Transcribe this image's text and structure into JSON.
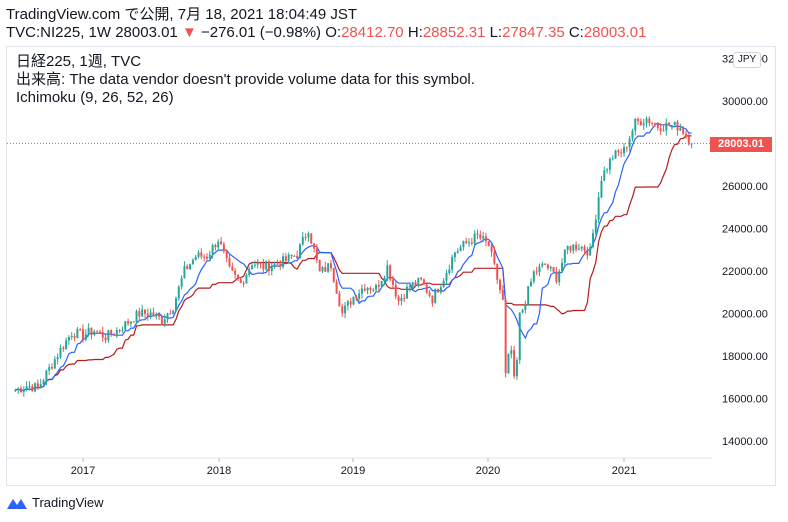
{
  "header": {
    "line1": "TradingView.com で公開, 7月 18, 2021 18:04:49 JST",
    "symbol": "TVC:NI225, 1W 28003.01",
    "change_arrow": "▼",
    "change": "−276.01 (−0.98%)",
    "o_label": "O:",
    "o_value": "28412.70",
    "h_label": "H:",
    "h_value": "28852.31",
    "l_label": "L:",
    "l_value": "27847.35",
    "c_label": "C:",
    "c_value": "28003.01"
  },
  "legend": {
    "line1": "日経225, 1週, TVC",
    "line2": "出来高: The data vendor doesn't provide volume data for this symbol.",
    "line3": "Ichimoku (9, 26, 52, 26)"
  },
  "currency": "JPY",
  "last_price_label": "28003.01",
  "brand": "TradingView",
  "colors": {
    "up": "#26a69a",
    "down": "#ef5350",
    "tenkan": "#2962ff",
    "kijun": "#b71c1c",
    "axis_text": "#131722"
  },
  "chart_data": {
    "type": "candlestick",
    "title": "日経225, 1週, TVC",
    "ylim": [
      13000,
      32000
    ],
    "y_ticks": [
      14000,
      16000,
      18000,
      20000,
      22000,
      24000,
      26000,
      28000,
      30000
    ],
    "y_tick_labels": [
      "14000.00",
      "16000.00",
      "18000.00",
      "20000.00",
      "22000.00",
      "24000.00",
      "26000.00",
      "28000.00",
      "30000.00"
    ],
    "y_top_label": "32000.00",
    "x_labels": [
      "2017",
      "2018",
      "2019",
      "2020",
      "2021"
    ],
    "last_price": 28003.01,
    "series": [
      {
        "name": "Ichimoku (9, 26, 52, 26)",
        "type": "ichimoku"
      }
    ],
    "close_path": [
      [
        "2016-07",
        16400
      ],
      [
        "2016-08",
        16600
      ],
      [
        "2016-09",
        16500
      ],
      [
        "2016-10",
        17400
      ],
      [
        "2016-11",
        18300
      ],
      [
        "2016-12",
        19100
      ],
      [
        "2017-01",
        19000
      ],
      [
        "2017-02",
        19200
      ],
      [
        "2017-03",
        18900
      ],
      [
        "2017-04",
        19200
      ],
      [
        "2017-05",
        19600
      ],
      [
        "2017-06",
        20000
      ],
      [
        "2017-07",
        20000
      ],
      [
        "2017-08",
        19700
      ],
      [
        "2017-09",
        20350
      ],
      [
        "2017-10",
        22000
      ],
      [
        "2017-11",
        22700
      ],
      [
        "2017-12",
        22700
      ],
      [
        "2018-01",
        23500
      ],
      [
        "2018-02",
        22000
      ],
      [
        "2018-03",
        21400
      ],
      [
        "2018-04",
        22400
      ],
      [
        "2018-05",
        22200
      ],
      [
        "2018-06",
        22300
      ],
      [
        "2018-07",
        22500
      ],
      [
        "2018-08",
        22800
      ],
      [
        "2018-09",
        24000
      ],
      [
        "2018-10",
        21900
      ],
      [
        "2018-11",
        22300
      ],
      [
        "2018-12",
        20000
      ],
      [
        "2019-01",
        20800
      ],
      [
        "2019-02",
        21300
      ],
      [
        "2019-03",
        21200
      ],
      [
        "2019-04",
        22200
      ],
      [
        "2019-05",
        20600
      ],
      [
        "2019-06",
        21300
      ],
      [
        "2019-07",
        21500
      ],
      [
        "2019-08",
        20700
      ],
      [
        "2019-09",
        21700
      ],
      [
        "2019-10",
        22900
      ],
      [
        "2019-11",
        23300
      ],
      [
        "2019-12",
        23650
      ],
      [
        "2020-01",
        23200
      ],
      [
        "2020-02",
        21100
      ],
      [
        "2020-03",
        18900
      ],
      [
        "2020-04",
        20200
      ],
      [
        "2020-05",
        21900
      ],
      [
        "2020-06",
        22300
      ],
      [
        "2020-07",
        21700
      ],
      [
        "2020-08",
        23100
      ],
      [
        "2020-09",
        23200
      ],
      [
        "2020-10",
        22900
      ],
      [
        "2020-11",
        26400
      ],
      [
        "2020-12",
        27400
      ],
      [
        "2021-01",
        27660
      ],
      [
        "2021-02",
        28960
      ],
      [
        "2021-03",
        29180
      ],
      [
        "2021-04",
        28810
      ],
      [
        "2021-05",
        28860
      ],
      [
        "2021-06",
        28790
      ],
      [
        "2021-07",
        28003
      ]
    ]
  }
}
